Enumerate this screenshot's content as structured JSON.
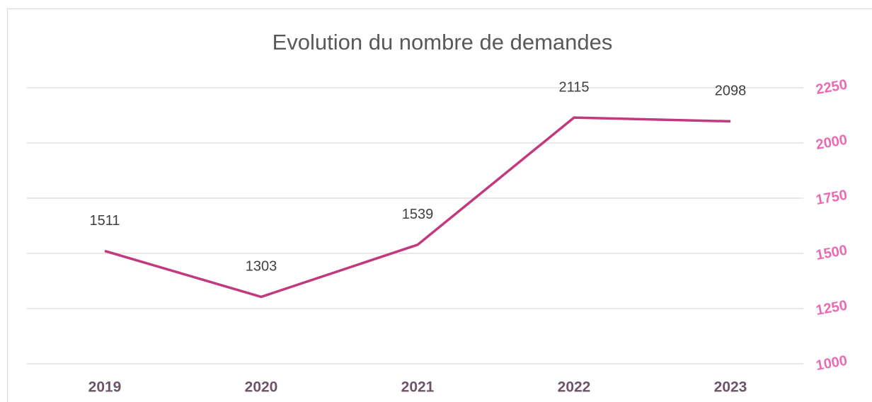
{
  "chart_data": {
    "type": "line",
    "title": "Evolution du nombre de demandes",
    "categories": [
      "2019",
      "2020",
      "2021",
      "2022",
      "2023"
    ],
    "values": [
      1511,
      1303,
      1539,
      2115,
      2098
    ],
    "color": "#c2397f",
    "axis_color": "#e96bb4",
    "ylim": [
      1000,
      2250
    ],
    "yticks": [
      1000,
      1250,
      1500,
      1750,
      2000,
      2250
    ],
    "y_axis_position": "right",
    "grid": true
  }
}
